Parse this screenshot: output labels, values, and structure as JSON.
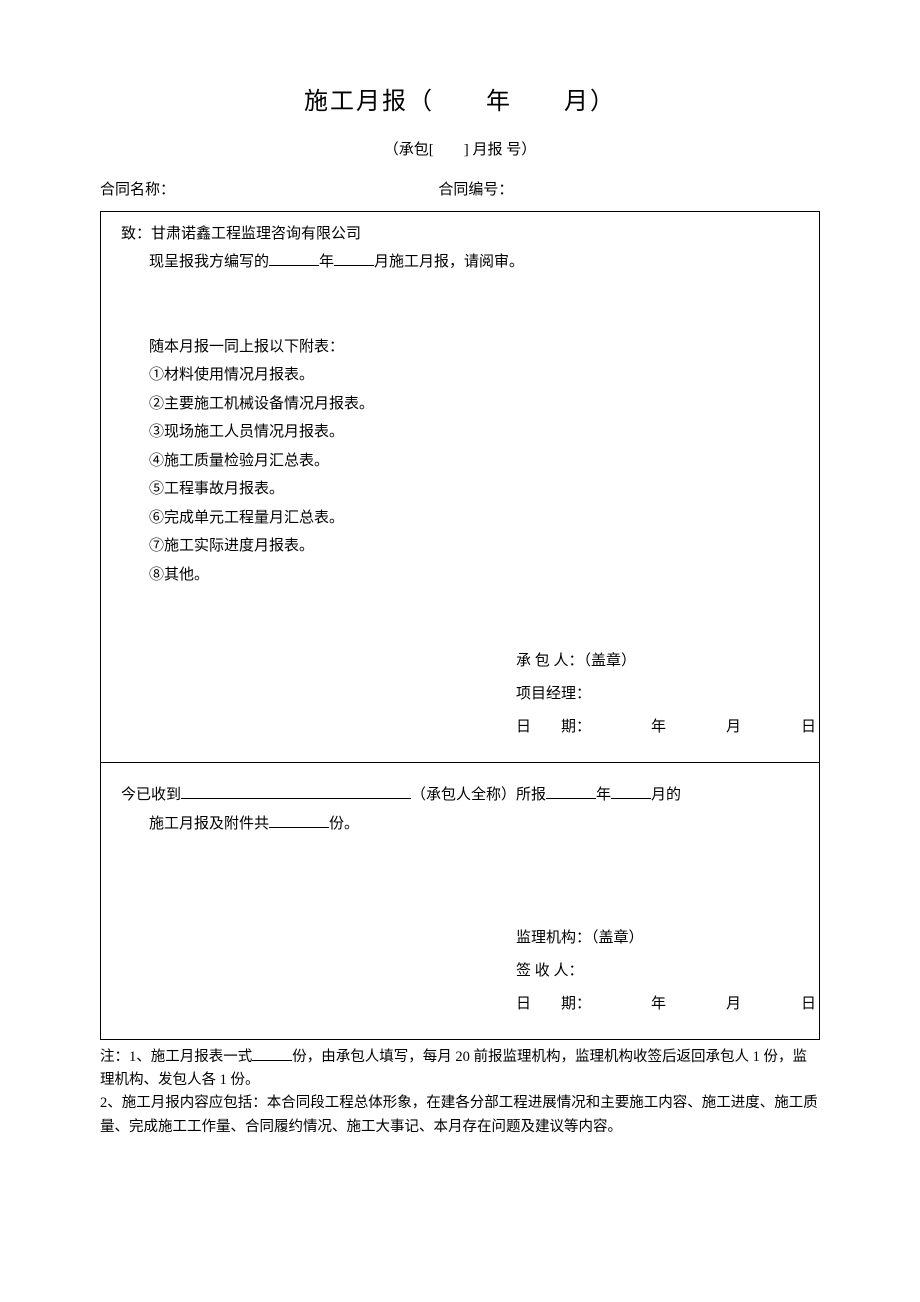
{
  "title": "施工月报（　　年　　月）",
  "subtitle": "（承包[　　] 月报  号）",
  "header": {
    "contract_name_label": "合同名称：",
    "contract_no_label": "合同编号："
  },
  "top_section": {
    "to_label": "致：",
    "to_value": "甘肃诺鑫工程监理咨询有限公司",
    "submit_prefix": "现呈报我方编写的",
    "year_char": "年",
    "month_char": "月",
    "submit_suffix": "施工月报，请阅审。",
    "attach_intro": "随本月报一同上报以下附表：",
    "attachments": [
      "①材料使用情况月报表。",
      "②主要施工机械设备情况月报表。",
      "③现场施工人员情况月报表。",
      "④施工质量检验月汇总表。",
      "⑤工程事故月报表。",
      "⑥完成单元工程量月汇总表。",
      "⑦施工实际进度月报表。",
      "⑧其他。"
    ],
    "sig": {
      "contractor_label": "承 包 人：（盖章）",
      "pm_label": "项目经理：",
      "date_label": "日　　期：",
      "y": "年",
      "m": "月",
      "d": "日"
    }
  },
  "bottom_section": {
    "received_prefix": "今已收到",
    "received_mid": "（承包人全称）所报",
    "year_char": "年",
    "month_char": "月的",
    "received_line2_prefix": "施工月报及附件共",
    "received_line2_suffix": "份。",
    "sig": {
      "supervisor_label": "监理机构：（盖章）",
      "receiver_label": "签 收 人：",
      "date_label": "日　　期：",
      "y": "年",
      "m": "月",
      "d": "日"
    }
  },
  "notes": {
    "note1_prefix": "注：1、施工月报表一式",
    "note1_suffix": "份，由承包人填写，每月 20 前报监理机构，监理机构收签后返回承包人 1 份，监理机构、发包人各 1 份。",
    "note2": "2、施工月报内容应包括：本合同段工程总体形象，在建各分部工程进展情况和主要施工内容、施工进度、施工质量、完成施工工作量、合同履约情况、施工大事记、本月存在问题及建议等内容。"
  },
  "style": {
    "background_color": "#ffffff",
    "text_color": "#000000",
    "border_color": "#000000",
    "title_fontsize": 24,
    "body_fontsize": 15,
    "notes_fontsize": 14.5,
    "font_family": "SimSun"
  }
}
